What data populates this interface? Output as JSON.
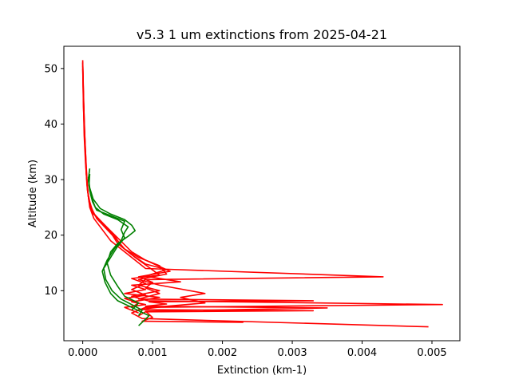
{
  "chart_data": {
    "type": "line",
    "title": "v5.3 1 um extinctions from 2025-04-21",
    "xlabel": "Extinction (km-1)",
    "ylabel": "Altitude (km)",
    "xlim": [
      -0.00027,
      0.0054
    ],
    "ylim": [
      1.0,
      54.0
    ],
    "x_ticks": [
      0.0,
      0.001,
      0.002,
      0.003,
      0.004,
      0.005
    ],
    "x_tick_labels": [
      "0.000",
      "0.001",
      "0.002",
      "0.003",
      "0.004",
      "0.005"
    ],
    "y_ticks": [
      10,
      20,
      30,
      40,
      50
    ],
    "y_tick_labels": [
      "10",
      "20",
      "30",
      "40",
      "50"
    ],
    "grid": false,
    "legend": "none",
    "series": [
      {
        "color": "#ff0000",
        "points": [
          [
            0.0,
            51.5
          ],
          [
            1e-05,
            45
          ],
          [
            2e-05,
            40
          ],
          [
            4e-05,
            35
          ],
          [
            6e-05,
            30
          ],
          [
            8e-05,
            27
          ],
          [
            0.0001,
            25
          ],
          [
            0.00016,
            23
          ],
          [
            0.00025,
            21.5
          ],
          [
            0.0004,
            19
          ],
          [
            0.0006,
            17
          ],
          [
            0.0008,
            15
          ],
          [
            0.0009,
            14
          ],
          [
            0.0043,
            12.5
          ],
          [
            0.0009,
            12
          ],
          [
            0.0008,
            11
          ],
          [
            0.0011,
            10
          ],
          [
            0.0007,
            9
          ],
          [
            0.00093,
            8.2
          ],
          [
            0.00515,
            7.5
          ],
          [
            0.0009,
            7
          ],
          [
            0.0007,
            6
          ],
          [
            0.00085,
            5
          ],
          [
            0.00495,
            3.5
          ]
        ]
      },
      {
        "color": "#ff0000",
        "points": [
          [
            0.0,
            51
          ],
          [
            1e-05,
            45
          ],
          [
            3e-05,
            38
          ],
          [
            5e-05,
            32
          ],
          [
            7e-05,
            28
          ],
          [
            0.0001,
            26
          ],
          [
            0.00015,
            24
          ],
          [
            0.0003,
            22
          ],
          [
            0.0005,
            19.5
          ],
          [
            0.0007,
            17
          ],
          [
            0.0009,
            15.5
          ],
          [
            0.00125,
            13.5
          ],
          [
            0.0008,
            12.5
          ],
          [
            0.001,
            11.5
          ],
          [
            0.0009,
            10.5
          ],
          [
            0.0011,
            9.5
          ],
          [
            0.0008,
            8.5
          ],
          [
            0.0033,
            8.2
          ],
          [
            0.00095,
            8.0
          ],
          [
            0.0012,
            7.6
          ],
          [
            0.0009,
            7.2
          ],
          [
            0.0035,
            6.9
          ],
          [
            0.0009,
            6.3
          ],
          [
            0.001,
            5.2
          ],
          [
            0.00085,
            4.5
          ],
          [
            0.0023,
            4.3
          ]
        ]
      },
      {
        "color": "#ff0000",
        "points": [
          [
            0.0,
            50
          ],
          [
            1e-05,
            44
          ],
          [
            2e-05,
            38
          ],
          [
            4e-05,
            33
          ],
          [
            7e-05,
            28
          ],
          [
            0.0001,
            25.5
          ],
          [
            0.0002,
            23
          ],
          [
            0.00035,
            21
          ],
          [
            0.0005,
            19
          ],
          [
            0.0006,
            17.5
          ],
          [
            0.0008,
            16
          ],
          [
            0.0011,
            14.5
          ],
          [
            0.0012,
            13
          ],
          [
            0.0008,
            12
          ],
          [
            0.0011,
            11
          ],
          [
            0.00175,
            9.5
          ],
          [
            0.0014,
            8.8
          ],
          [
            0.00175,
            7.8
          ],
          [
            0.0012,
            7.2
          ],
          [
            0.0008,
            6.6
          ],
          [
            0.0033,
            6.4
          ],
          [
            0.0009,
            6.2
          ],
          [
            0.0008,
            5.5
          ]
        ]
      },
      {
        "color": "#ff0000",
        "points": [
          [
            0.0,
            50.5
          ],
          [
            1e-05,
            43
          ],
          [
            3e-05,
            37
          ],
          [
            5e-05,
            31
          ],
          [
            8e-05,
            27
          ],
          [
            0.00012,
            24.5
          ],
          [
            0.00025,
            22.5
          ],
          [
            0.0004,
            20.5
          ],
          [
            0.0005,
            18.5
          ],
          [
            0.0007,
            16.5
          ],
          [
            0.0009,
            14.8
          ],
          [
            0.0012,
            13.8
          ],
          [
            0.0009,
            12.6
          ],
          [
            0.0014,
            11.6
          ],
          [
            0.0007,
            11.0
          ],
          [
            0.0009,
            10.2
          ],
          [
            0.0006,
            9.5
          ],
          [
            0.0011,
            8.8
          ],
          [
            0.0007,
            8.0
          ],
          [
            0.0009,
            7.5
          ],
          [
            0.0006,
            7.0
          ],
          [
            0.0008,
            6.0
          ]
        ]
      },
      {
        "color": "#ff0000",
        "points": [
          [
            0.0,
            51.2
          ],
          [
            1e-05,
            46
          ],
          [
            2e-05,
            41
          ],
          [
            4e-05,
            34
          ],
          [
            6e-05,
            29
          ],
          [
            9e-05,
            26
          ],
          [
            0.00014,
            24
          ],
          [
            0.0003,
            22
          ],
          [
            0.00045,
            20
          ],
          [
            0.00055,
            18
          ],
          [
            0.00075,
            16
          ],
          [
            0.00095,
            14.2
          ],
          [
            0.0011,
            12.8
          ],
          [
            0.0007,
            12.2
          ],
          [
            0.0009,
            11.3
          ],
          [
            0.0007,
            10.2
          ],
          [
            0.0009,
            9.2
          ],
          [
            0.0006,
            8.6
          ],
          [
            0.0008,
            7.8
          ],
          [
            0.0007,
            7.0
          ]
        ]
      },
      {
        "color": "#008000",
        "points": [
          [
            0.0001,
            32
          ],
          [
            8e-05,
            30
          ],
          [
            0.0001,
            28
          ],
          [
            0.00014,
            26
          ],
          [
            0.0002,
            24.5
          ],
          [
            0.0004,
            23.5
          ],
          [
            0.0006,
            22.5
          ],
          [
            0.00055,
            21
          ],
          [
            0.0006,
            19.5
          ],
          [
            0.0005,
            18
          ],
          [
            0.0004,
            16
          ],
          [
            0.0003,
            14
          ],
          [
            0.00033,
            12
          ],
          [
            0.00042,
            10
          ],
          [
            0.00055,
            8.5
          ],
          [
            0.0007,
            7.5
          ],
          [
            0.00085,
            6.5
          ],
          [
            0.0008,
            5.5
          ]
        ]
      },
      {
        "color": "#008000",
        "points": [
          [
            0.0001,
            31
          ],
          [
            9e-05,
            29
          ],
          [
            0.00012,
            27
          ],
          [
            0.00018,
            25
          ],
          [
            0.0003,
            23.8
          ],
          [
            0.0005,
            22.8
          ],
          [
            0.00065,
            21.5
          ],
          [
            0.0006,
            20.5
          ],
          [
            0.00055,
            19
          ],
          [
            0.00045,
            17.5
          ],
          [
            0.00035,
            15.5
          ],
          [
            0.00028,
            13.5
          ],
          [
            0.00032,
            11.5
          ],
          [
            0.0004,
            9.5
          ],
          [
            0.0005,
            8.2
          ],
          [
            0.0007,
            7.0
          ],
          [
            0.00095,
            5.5
          ],
          [
            0.0008,
            3.7
          ]
        ]
      },
      {
        "color": "#008000",
        "points": [
          [
            8e-05,
            30.5
          ],
          [
            0.0001,
            28.5
          ],
          [
            0.00015,
            26.5
          ],
          [
            0.00025,
            24.8
          ],
          [
            0.0004,
            23.8
          ],
          [
            0.0006,
            22.8
          ],
          [
            0.0007,
            21.8
          ],
          [
            0.00075,
            20.8
          ],
          [
            0.00065,
            19.8
          ],
          [
            0.0005,
            18.5
          ],
          [
            0.0004,
            17
          ],
          [
            0.00035,
            15
          ],
          [
            0.0004,
            12.8
          ],
          [
            0.0005,
            10.8
          ],
          [
            0.0006,
            9.0
          ],
          [
            0.0008,
            7.8
          ],
          [
            0.0007,
            6.5
          ]
        ]
      }
    ]
  }
}
